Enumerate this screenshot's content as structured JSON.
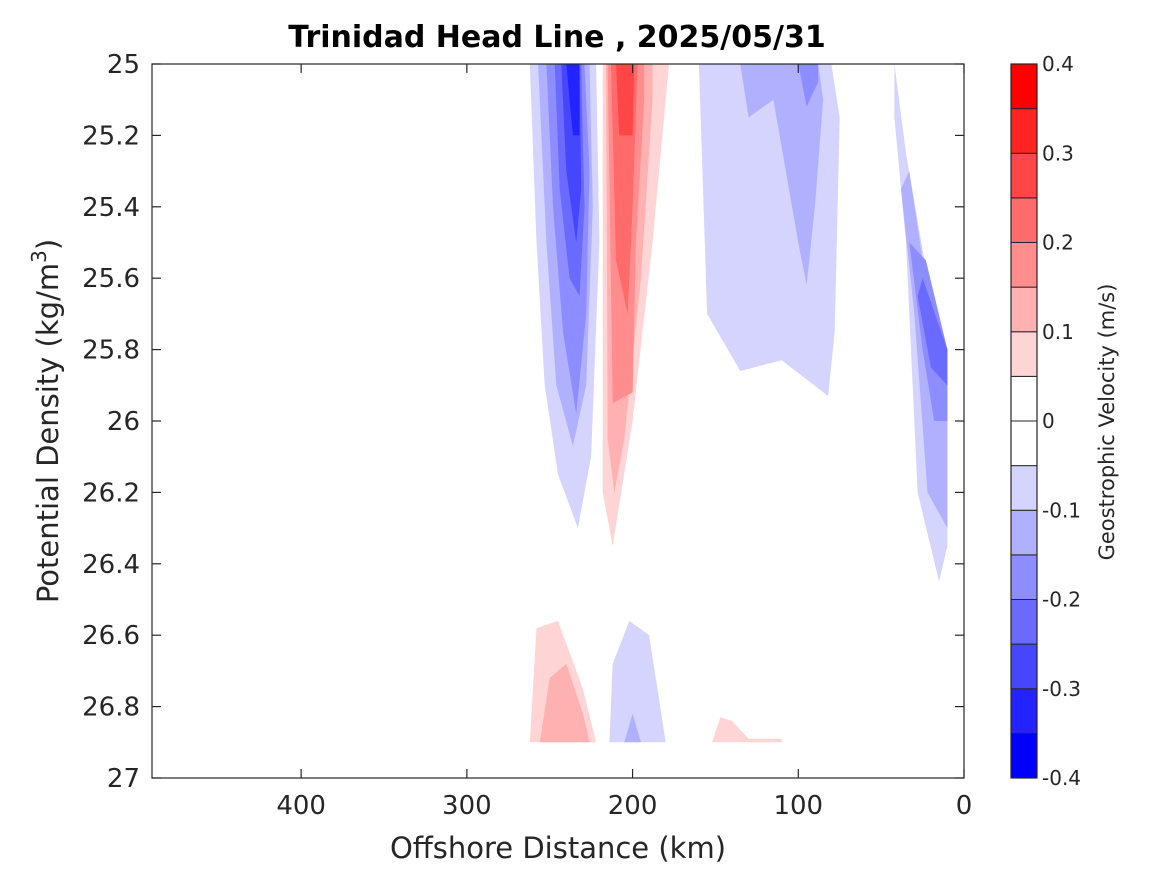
{
  "chart_data": {
    "type": "contour",
    "title": "Trinidad Head Line , 2025/05/31",
    "xlabel": "Offshore Distance (km)",
    "ylabel_main": "Potential Density (kg/m",
    "ylabel_sup": "3",
    "ylabel_close": ")",
    "colorbar_label": "Geostrophic Velocity (m/s)",
    "xlim": [
      490,
      0
    ],
    "ylim": [
      25,
      27
    ],
    "x_reversed": true,
    "y_reversed": true,
    "x_ticks": [
      400,
      300,
      200,
      100,
      0
    ],
    "x_tick_labels": [
      "400",
      "300",
      "200",
      "100",
      "0"
    ],
    "y_ticks": [
      25,
      25.2,
      25.4,
      25.6,
      25.8,
      26,
      26.2,
      26.4,
      26.6,
      26.8,
      27
    ],
    "y_tick_labels": [
      "25",
      "25.2",
      "25.4",
      "25.6",
      "25.8",
      "26",
      "26.2",
      "26.4",
      "26.6",
      "26.8",
      "27"
    ],
    "colorbar": {
      "min": -0.4,
      "max": 0.4,
      "levels": [
        -0.4,
        -0.35,
        -0.3,
        -0.25,
        -0.2,
        -0.15,
        -0.1,
        -0.05,
        0,
        0.05,
        0.1,
        0.15,
        0.2,
        0.25,
        0.3,
        0.35,
        0.4
      ],
      "colors": [
        "#0000ff",
        "#2323ff",
        "#4646ff",
        "#6a6aff",
        "#8d8dff",
        "#b0b0ff",
        "#d4d4ff",
        "#ffffff",
        "#ffffff",
        "#ffd4d4",
        "#ffb0b0",
        "#ff8d8d",
        "#ff6a6a",
        "#ff4646",
        "#ff2323",
        "#ff0000"
      ],
      "tick_values": [
        0.4,
        0.3,
        0.2,
        0.1,
        0,
        -0.1,
        -0.2,
        -0.3,
        -0.4
      ],
      "tick_labels": [
        "0.4",
        "0.3",
        "0.2",
        "0.1",
        "0",
        "-0.1",
        "-0.2",
        "-0.3",
        "-0.4"
      ]
    },
    "regions": [
      {
        "name": "blue-core-outer",
        "value": -0.075,
        "points": [
          [
            262,
            25
          ],
          [
            258,
            25.5
          ],
          [
            253,
            25.9
          ],
          [
            245,
            26.15
          ],
          [
            233,
            26.3
          ],
          [
            225,
            26.1
          ],
          [
            220,
            25.5
          ],
          [
            222,
            25
          ]
        ]
      },
      {
        "name": "blue-core-l2",
        "value": -0.125,
        "points": [
          [
            257,
            25
          ],
          [
            252,
            25.5
          ],
          [
            246,
            25.9
          ],
          [
            236,
            26.07
          ],
          [
            228,
            25.9
          ],
          [
            224,
            25.4
          ],
          [
            226,
            25
          ]
        ]
      },
      {
        "name": "blue-core-l3",
        "value": -0.175,
        "points": [
          [
            252,
            25
          ],
          [
            248,
            25.4
          ],
          [
            242,
            25.75
          ],
          [
            234,
            25.98
          ],
          [
            228,
            25.7
          ],
          [
            226,
            25.3
          ],
          [
            229,
            25
          ]
        ]
      },
      {
        "name": "blue-core-l4",
        "value": -0.225,
        "points": [
          [
            247,
            25
          ],
          [
            244,
            25.35
          ],
          [
            238,
            25.6
          ],
          [
            232,
            25.65
          ],
          [
            229,
            25.4
          ],
          [
            231,
            25
          ]
        ]
      },
      {
        "name": "blue-core-l5",
        "value": -0.275,
        "points": [
          [
            243,
            25
          ],
          [
            240,
            25.3
          ],
          [
            234,
            25.5
          ],
          [
            231,
            25.35
          ],
          [
            232,
            25
          ]
        ]
      },
      {
        "name": "blue-core-l6",
        "value": -0.325,
        "points": [
          [
            240,
            25
          ],
          [
            236,
            25.2
          ],
          [
            232,
            25.2
          ],
          [
            232,
            25
          ]
        ]
      },
      {
        "name": "red-core-outer",
        "value": 0.075,
        "points": [
          [
            218,
            25
          ],
          [
            218,
            26.2
          ],
          [
            212,
            26.35
          ],
          [
            200,
            26
          ],
          [
            188,
            25.5
          ],
          [
            178,
            25
          ],
          [
            178,
            25
          ]
        ]
      },
      {
        "name": "red-core-l2",
        "value": 0.125,
        "points": [
          [
            216,
            25
          ],
          [
            215,
            26.05
          ],
          [
            211,
            26.2
          ],
          [
            205,
            26.05
          ],
          [
            195,
            25.6
          ],
          [
            188,
            25.1
          ],
          [
            188,
            25
          ]
        ]
      },
      {
        "name": "red-core-l3",
        "value": 0.175,
        "points": [
          [
            215,
            25
          ],
          [
            212,
            25.95
          ],
          [
            200,
            25.92
          ],
          [
            198,
            25.5
          ],
          [
            193,
            25.1
          ],
          [
            193,
            25
          ]
        ]
      },
      {
        "name": "red-core-l4",
        "value": 0.225,
        "points": [
          [
            213,
            25
          ],
          [
            210,
            25.55
          ],
          [
            203,
            25.7
          ],
          [
            200,
            25.4
          ],
          [
            197,
            25
          ]
        ]
      },
      {
        "name": "red-core-l5",
        "value": 0.275,
        "points": [
          [
            210,
            25
          ],
          [
            208,
            25.2
          ],
          [
            200,
            25.2
          ],
          [
            199,
            25
          ]
        ]
      },
      {
        "name": "blue-mid-outer",
        "value": -0.075,
        "points": [
          [
            160,
            25
          ],
          [
            155,
            25.7
          ],
          [
            135,
            25.86
          ],
          [
            110,
            25.83
          ],
          [
            82,
            25.93
          ],
          [
            78,
            25.75
          ],
          [
            75,
            25.15
          ],
          [
            80,
            25
          ],
          [
            120,
            25
          ]
        ]
      },
      {
        "name": "blue-mid-l2",
        "value": -0.125,
        "points": [
          [
            135,
            25
          ],
          [
            130,
            25.15
          ],
          [
            115,
            25.1
          ],
          [
            100,
            25.5
          ],
          [
            95,
            25.62
          ],
          [
            90,
            25.4
          ],
          [
            85,
            25.1
          ],
          [
            88,
            25
          ]
        ]
      },
      {
        "name": "blue-mid-l3",
        "value": -0.175,
        "points": [
          [
            100,
            25
          ],
          [
            95,
            25.12
          ],
          [
            88,
            25.05
          ],
          [
            88,
            25
          ]
        ]
      },
      {
        "name": "blue-coast-outer",
        "value": -0.075,
        "points": [
          [
            42,
            25.15
          ],
          [
            35,
            25.5
          ],
          [
            28,
            26.2
          ],
          [
            15,
            26.45
          ],
          [
            10,
            26.35
          ],
          [
            10,
            25.95
          ],
          [
            22,
            25.6
          ],
          [
            35,
            25.25
          ],
          [
            42,
            25
          ]
        ]
      },
      {
        "name": "blue-coast-l2",
        "value": -0.125,
        "points": [
          [
            38,
            25.35
          ],
          [
            30,
            25.7
          ],
          [
            22,
            26.2
          ],
          [
            10,
            26.3
          ],
          [
            10,
            25.9
          ],
          [
            25,
            25.55
          ],
          [
            33,
            25.3
          ]
        ]
      },
      {
        "name": "blue-coast-l3",
        "value": -0.175,
        "points": [
          [
            33,
            25.5
          ],
          [
            25,
            25.8
          ],
          [
            18,
            26
          ],
          [
            10,
            26.0
          ],
          [
            10,
            25.8
          ],
          [
            23,
            25.55
          ]
        ]
      },
      {
        "name": "blue-coast-l4",
        "value": -0.225,
        "points": [
          [
            28,
            25.65
          ],
          [
            20,
            25.85
          ],
          [
            10,
            25.9
          ],
          [
            10,
            25.8
          ],
          [
            25,
            25.6
          ]
        ]
      },
      {
        "name": "red-deep-a",
        "value": 0.075,
        "points": [
          [
            262,
            26.9
          ],
          [
            258,
            26.58
          ],
          [
            245,
            26.56
          ],
          [
            230,
            26.75
          ],
          [
            222,
            26.9
          ]
        ]
      },
      {
        "name": "red-deep-a-l2",
        "value": 0.125,
        "points": [
          [
            256,
            26.9
          ],
          [
            250,
            26.72
          ],
          [
            240,
            26.68
          ],
          [
            230,
            26.82
          ],
          [
            226,
            26.9
          ]
        ]
      },
      {
        "name": "blue-deep-b",
        "value": -0.075,
        "points": [
          [
            214,
            26.9
          ],
          [
            212,
            26.68
          ],
          [
            202,
            26.56
          ],
          [
            190,
            26.6
          ],
          [
            180,
            26.9
          ]
        ]
      },
      {
        "name": "blue-deep-b-l2",
        "value": -0.125,
        "points": [
          [
            205,
            26.9
          ],
          [
            200,
            26.82
          ],
          [
            195,
            26.9
          ]
        ]
      },
      {
        "name": "red-deep-c",
        "value": 0.075,
        "points": [
          [
            152,
            26.9
          ],
          [
            147,
            26.83
          ],
          [
            140,
            26.84
          ],
          [
            130,
            26.89
          ],
          [
            110,
            26.89
          ],
          [
            110,
            26.9
          ]
        ]
      }
    ]
  }
}
